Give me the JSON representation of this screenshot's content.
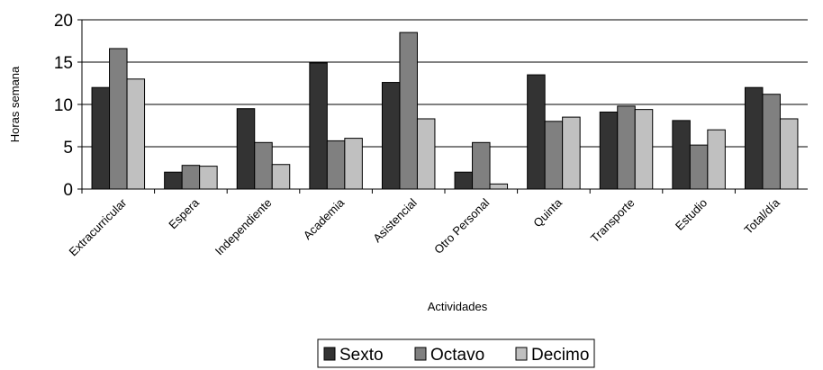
{
  "chart_data": {
    "type": "bar",
    "categories": [
      "Extracurricular",
      "Espera",
      "Independiente",
      "Academia",
      "Asistencial",
      "Otro Personal",
      "Quinta",
      "Transporte",
      "Estudio",
      "Total/día"
    ],
    "series": [
      {
        "name": "Sexto",
        "color": "#333333",
        "values": [
          12.0,
          2.0,
          9.5,
          14.9,
          12.6,
          2.0,
          13.5,
          9.1,
          8.1,
          12.0
        ]
      },
      {
        "name": "Octavo",
        "color": "#808080",
        "values": [
          16.6,
          2.8,
          5.5,
          5.7,
          18.5,
          5.5,
          8.0,
          9.8,
          5.2,
          11.2
        ]
      },
      {
        "name": "Decimo",
        "color": "#c0c0c0",
        "values": [
          13.0,
          2.7,
          2.9,
          6.0,
          8.3,
          0.6,
          8.5,
          9.4,
          7.0,
          8.3
        ]
      }
    ],
    "title": "",
    "xlabel": "Actividades",
    "ylabel": "Horas semana",
    "ylim": [
      0,
      20
    ],
    "yticks": [
      0,
      5,
      10,
      15,
      20
    ],
    "grid": true,
    "legend_position": "bottom"
  }
}
